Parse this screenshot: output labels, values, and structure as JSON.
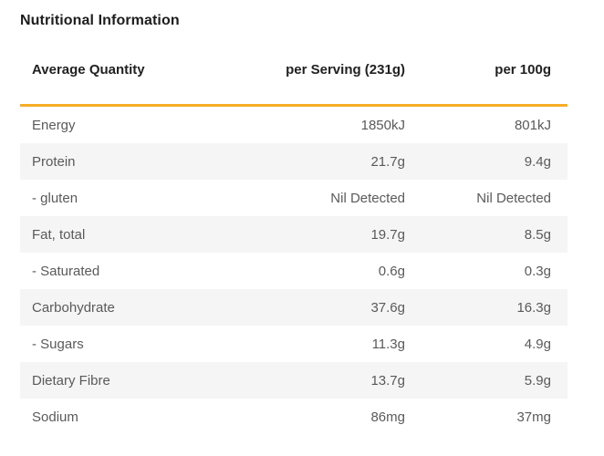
{
  "title": "Nutritional Information",
  "table": {
    "headers": [
      "Average Quantity",
      "per Serving (231g)",
      "per 100g"
    ],
    "rows": [
      {
        "label": "Energy",
        "per_serving": "1850kJ",
        "per_100g": "801kJ"
      },
      {
        "label": "Protein",
        "per_serving": "21.7g",
        "per_100g": "9.4g"
      },
      {
        "label": "- gluten",
        "per_serving": "Nil Detected",
        "per_100g": "Nil Detected"
      },
      {
        "label": "Fat, total",
        "per_serving": "19.7g",
        "per_100g": "8.5g"
      },
      {
        "label": "- Saturated",
        "per_serving": "0.6g",
        "per_100g": "0.3g"
      },
      {
        "label": "Carbohydrate",
        "per_serving": "37.6g",
        "per_100g": "16.3g"
      },
      {
        "label": "- Sugars",
        "per_serving": "11.3g",
        "per_100g": "4.9g"
      },
      {
        "label": "Dietary Fibre",
        "per_serving": "13.7g",
        "per_100g": "5.9g"
      },
      {
        "label": "Sodium",
        "per_serving": "86mg",
        "per_100g": "37mg"
      }
    ]
  },
  "colors": {
    "accent_rule": "#f6ae24",
    "stripe_background": "#f5f5f5",
    "header_text": "#212121",
    "row_text": "#5a5a5c"
  },
  "chart_data": {
    "type": "table",
    "title": "Nutritional Information",
    "columns": [
      "Average Quantity",
      "per Serving (231g)",
      "per 100g"
    ],
    "rows": [
      [
        "Energy",
        "1850kJ",
        "801kJ"
      ],
      [
        "Protein",
        "21.7g",
        "9.4g"
      ],
      [
        "- gluten",
        "Nil Detected",
        "Nil Detected"
      ],
      [
        "Fat, total",
        "19.7g",
        "8.5g"
      ],
      [
        "- Saturated",
        "0.6g",
        "0.3g"
      ],
      [
        "Carbohydrate",
        "37.6g",
        "16.3g"
      ],
      [
        "- Sugars",
        "11.3g",
        "4.9g"
      ],
      [
        "Dietary Fibre",
        "13.7g",
        "5.9g"
      ],
      [
        "Sodium",
        "86mg",
        "37mg"
      ]
    ]
  }
}
